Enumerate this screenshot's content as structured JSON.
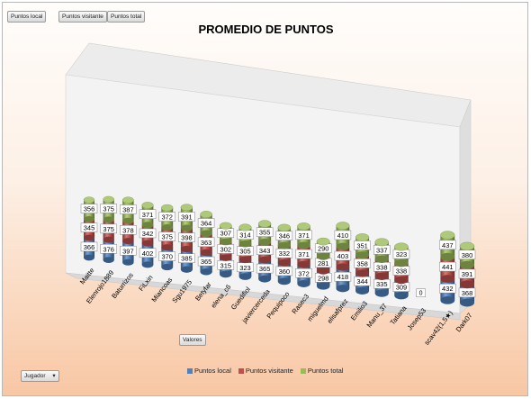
{
  "filters": {
    "puntos_local": "Puntos local",
    "puntos_visitante": "Puntos visitante",
    "puntos_total": "Puntos total",
    "valores": "Valores",
    "jugador": "Jugador"
  },
  "colors": {
    "local": "#4f81bd",
    "visitante": "#c0504d",
    "total": "#9bbb59"
  },
  "chart_data": {
    "type": "bar",
    "stacked": true,
    "title": "PROMEDIO DE PUNTOS",
    "categories": [
      "Maitte",
      "Elenrojo1889",
      "Baturrizos",
      "FiLxin",
      "Miancoas",
      "Sgu1975",
      "Betyfar",
      "elena_c6",
      "Guedifiol",
      "javiercerceda",
      "Pequipoco",
      "Rasec3",
      "miguelmd",
      "elisafprez",
      "Emilio3",
      "Manu_37",
      "Tatiana",
      "Josep53",
      "scav42(1,5★)",
      "Dark07"
    ],
    "series": [
      {
        "name": "Puntos local",
        "values": [
          366,
          376,
          397,
          402,
          370,
          385,
          365,
          315,
          323,
          365,
          360,
          372,
          298,
          418,
          344,
          335,
          309,
          0,
          432,
          368
        ]
      },
      {
        "name": "Puntos visitante",
        "values": [
          345,
          375,
          378,
          342,
          375,
          398,
          363,
          302,
          305,
          343,
          332,
          371,
          281,
          403,
          358,
          338,
          338,
          0,
          441,
          391
        ]
      },
      {
        "name": "Puntos total",
        "values": [
          356,
          375,
          387,
          371,
          372,
          391,
          364,
          307,
          314,
          355,
          346,
          371,
          290,
          410,
          351,
          337,
          323,
          0,
          437,
          380
        ]
      }
    ],
    "legend": "bottom",
    "grid": false
  }
}
